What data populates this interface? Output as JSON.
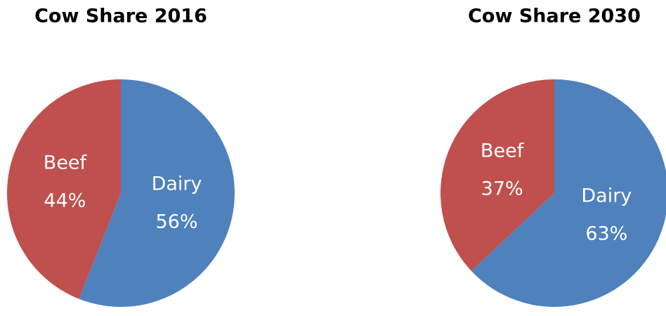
{
  "chart_data": [
    {
      "type": "pie",
      "title": "Cow Share 2016",
      "categories": [
        "Dairy",
        "Beef"
      ],
      "values": [
        56,
        44
      ],
      "value_labels": [
        "56%",
        "44%"
      ],
      "colors": [
        "#4f81bd",
        "#c0504d"
      ]
    },
    {
      "type": "pie",
      "title": "Cow Share 2030",
      "categories": [
        "Dairy",
        "Beef"
      ],
      "values": [
        63,
        37
      ],
      "value_labels": [
        "63%",
        "37%"
      ],
      "colors": [
        "#4f81bd",
        "#c0504d"
      ]
    }
  ]
}
